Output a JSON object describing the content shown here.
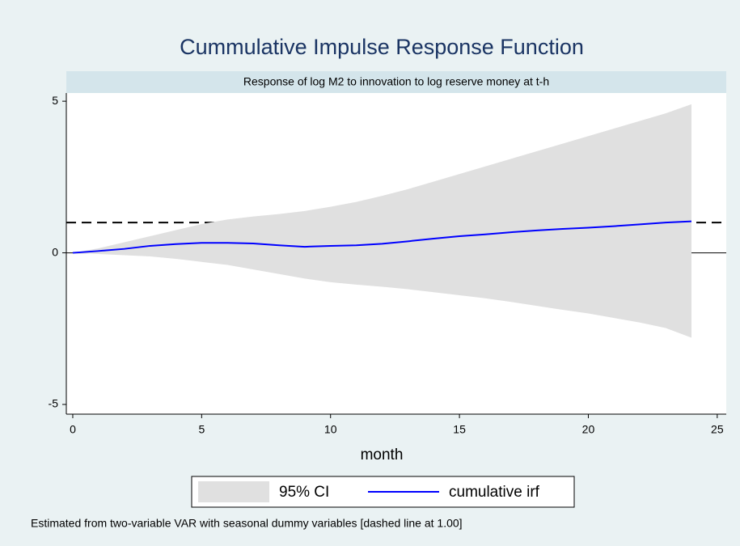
{
  "chart_data": {
    "type": "line",
    "title": "Cummulative Impulse Response Function",
    "subtitle": "Response of log M2 to innovation to log reserve money at t-h",
    "x_label": "month",
    "note": "Estimated from two-variable VAR with seasonal dummy variables [dashed line at 1.00]",
    "x": [
      0,
      1,
      2,
      3,
      4,
      5,
      6,
      7,
      8,
      9,
      10,
      11,
      12,
      13,
      14,
      15,
      16,
      17,
      18,
      19,
      20,
      21,
      22,
      23,
      24
    ],
    "series": [
      {
        "name": "95% CI",
        "type": "area",
        "color": "#e0e0e0",
        "upper": [
          0,
          0.15,
          0.35,
          0.55,
          0.75,
          0.95,
          1.1,
          1.2,
          1.28,
          1.38,
          1.52,
          1.68,
          1.88,
          2.1,
          2.35,
          2.6,
          2.85,
          3.1,
          3.35,
          3.6,
          3.85,
          4.1,
          4.35,
          4.6,
          4.9
        ],
        "lower": [
          0,
          -0.04,
          -0.08,
          -0.12,
          -0.2,
          -0.3,
          -0.4,
          -0.55,
          -0.7,
          -0.85,
          -0.97,
          -1.05,
          -1.12,
          -1.2,
          -1.3,
          -1.4,
          -1.5,
          -1.62,
          -1.75,
          -1.88,
          -2.0,
          -2.15,
          -2.3,
          -2.48,
          -2.8
        ]
      },
      {
        "name": "cumulative irf",
        "type": "line",
        "color": "#0000ff",
        "values": [
          0,
          0.06,
          0.13,
          0.23,
          0.29,
          0.33,
          0.33,
          0.31,
          0.25,
          0.2,
          0.23,
          0.25,
          0.3,
          0.38,
          0.47,
          0.55,
          0.61,
          0.68,
          0.74,
          0.79,
          0.83,
          0.88,
          0.94,
          1.0,
          1.04
        ]
      }
    ],
    "reference_lines": [
      {
        "value": 0,
        "style": "solid"
      },
      {
        "value": 1,
        "style": "dashed"
      }
    ],
    "xlim": [
      -0.25,
      25.35
    ],
    "xticks": [
      0,
      5,
      10,
      15,
      20,
      25
    ],
    "ylim": [
      -5.32,
      5.27
    ],
    "yticks": [
      -5,
      0,
      5
    ]
  }
}
